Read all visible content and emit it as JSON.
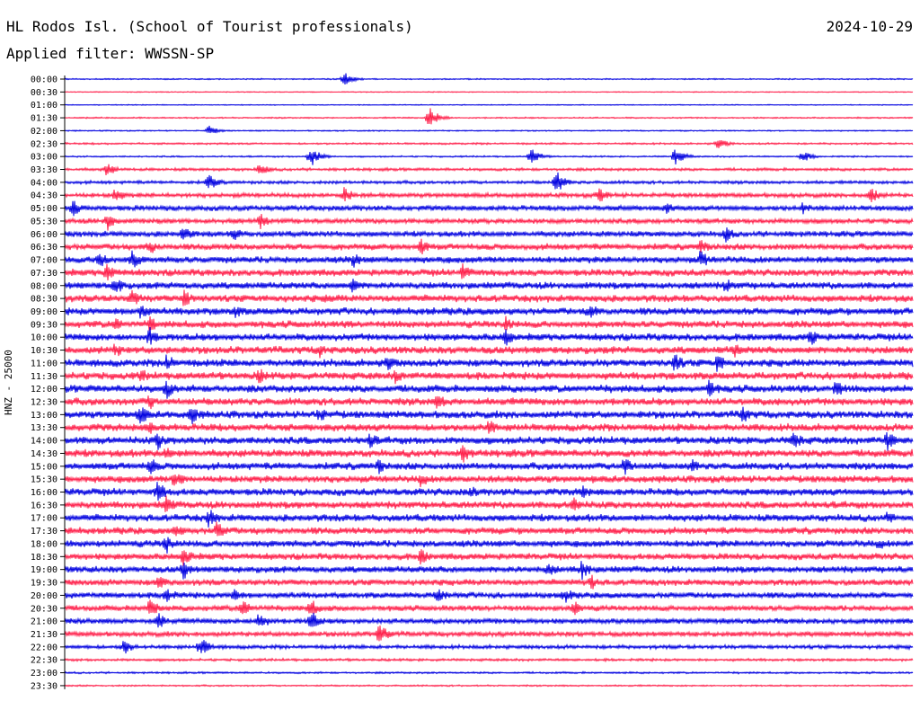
{
  "header": {
    "title": "HL Rodos Isl. (School of Tourist professionals)",
    "date": "2024-10-29",
    "filter": "Applied filter: WWSSN-SP"
  },
  "side_label": "HNZ - 25000",
  "colors": {
    "odd_trace": "#0000e0",
    "even_trace": "#ff1f4a",
    "axis": "#000000",
    "background": "#ffffff"
  },
  "chart_data": {
    "type": "line",
    "title": "HL Rodos Isl. (School of Tourist professionals)",
    "subtitle": "Applied filter: WWSSN-SP",
    "ylabel": "HNZ - 25000",
    "row_labels": [
      "00:00",
      "00:30",
      "01:00",
      "01:30",
      "02:00",
      "02:30",
      "03:00",
      "03:30",
      "04:00",
      "04:30",
      "05:00",
      "05:30",
      "06:00",
      "06:30",
      "07:00",
      "07:30",
      "08:00",
      "08:30",
      "09:00",
      "09:30",
      "10:00",
      "10:30",
      "11:00",
      "11:30",
      "12:00",
      "12:30",
      "13:00",
      "13:30",
      "14:00",
      "14:30",
      "15:00",
      "15:30",
      "16:00",
      "16:30",
      "17:00",
      "17:30",
      "18:00",
      "18:30",
      "19:00",
      "19:30",
      "20:00",
      "20:30",
      "21:00",
      "21:30",
      "22:00",
      "22:30",
      "23:00",
      "23:30"
    ],
    "trace_colors": [
      "#0000e0",
      "#ff1f4a"
    ],
    "noise_level": [
      0.8,
      0.6,
      0.6,
      0.9,
      0.8,
      1.2,
      1.0,
      1.8,
      2.0,
      2.8,
      3.4,
      3.2,
      3.6,
      4.0,
      4.2,
      4.4,
      4.4,
      4.6,
      4.6,
      4.6,
      4.6,
      4.8,
      4.8,
      4.8,
      4.8,
      4.8,
      4.8,
      4.8,
      4.8,
      4.8,
      4.6,
      4.6,
      4.6,
      4.6,
      4.6,
      4.4,
      4.4,
      4.2,
      4.2,
      4.0,
      3.8,
      3.6,
      3.4,
      3.2,
      2.4,
      1.6,
      1.2,
      1.0
    ],
    "events": [
      {
        "row": 0,
        "x": 0.33,
        "amp": 8
      },
      {
        "row": 3,
        "x": 0.43,
        "amp": 12
      },
      {
        "row": 4,
        "x": 0.17,
        "amp": 6
      },
      {
        "row": 5,
        "x": 0.77,
        "amp": 7
      },
      {
        "row": 6,
        "x": 0.29,
        "amp": 12
      },
      {
        "row": 6,
        "x": 0.55,
        "amp": 10
      },
      {
        "row": 6,
        "x": 0.72,
        "amp": 10
      },
      {
        "row": 6,
        "x": 0.87,
        "amp": 7
      },
      {
        "row": 7,
        "x": 0.05,
        "amp": 8
      },
      {
        "row": 7,
        "x": 0.23,
        "amp": 8
      },
      {
        "row": 8,
        "x": 0.17,
        "amp": 10
      },
      {
        "row": 8,
        "x": 0.58,
        "amp": 14
      },
      {
        "row": 9,
        "x": 0.06,
        "amp": 10
      },
      {
        "row": 9,
        "x": 0.33,
        "amp": 10
      },
      {
        "row": 9,
        "x": 0.63,
        "amp": 10
      },
      {
        "row": 9,
        "x": 0.95,
        "amp": 10
      },
      {
        "row": 10,
        "x": 0.01,
        "amp": 10
      },
      {
        "row": 10,
        "x": 0.71,
        "amp": 8
      },
      {
        "row": 10,
        "x": 0.87,
        "amp": 8
      },
      {
        "row": 11,
        "x": 0.05,
        "amp": 12
      },
      {
        "row": 11,
        "x": 0.23,
        "amp": 10
      },
      {
        "row": 12,
        "x": 0.14,
        "amp": 10
      },
      {
        "row": 12,
        "x": 0.2,
        "amp": 10
      },
      {
        "row": 12,
        "x": 0.78,
        "amp": 10
      },
      {
        "row": 13,
        "x": 0.1,
        "amp": 10
      },
      {
        "row": 13,
        "x": 0.42,
        "amp": 10
      },
      {
        "row": 13,
        "x": 0.75,
        "amp": 10
      },
      {
        "row": 14,
        "x": 0.04,
        "amp": 12
      },
      {
        "row": 14,
        "x": 0.08,
        "amp": 12
      },
      {
        "row": 14,
        "x": 0.34,
        "amp": 10
      },
      {
        "row": 14,
        "x": 0.75,
        "amp": 12
      },
      {
        "row": 15,
        "x": 0.05,
        "amp": 12
      },
      {
        "row": 15,
        "x": 0.47,
        "amp": 12
      },
      {
        "row": 16,
        "x": 0.06,
        "amp": 12
      },
      {
        "row": 16,
        "x": 0.34,
        "amp": 10
      },
      {
        "row": 16,
        "x": 0.78,
        "amp": 10
      },
      {
        "row": 17,
        "x": 0.08,
        "amp": 12
      },
      {
        "row": 17,
        "x": 0.14,
        "amp": 12
      },
      {
        "row": 17,
        "x": 0.31,
        "amp": 8
      },
      {
        "row": 18,
        "x": 0.09,
        "amp": 10
      },
      {
        "row": 18,
        "x": 0.2,
        "amp": 10
      },
      {
        "row": 18,
        "x": 0.62,
        "amp": 10
      },
      {
        "row": 19,
        "x": 0.06,
        "amp": 10
      },
      {
        "row": 19,
        "x": 0.1,
        "amp": 10
      },
      {
        "row": 19,
        "x": 0.52,
        "amp": 10
      },
      {
        "row": 20,
        "x": 0.1,
        "amp": 12
      },
      {
        "row": 20,
        "x": 0.52,
        "amp": 12
      },
      {
        "row": 20,
        "x": 0.88,
        "amp": 10
      },
      {
        "row": 21,
        "x": 0.06,
        "amp": 10
      },
      {
        "row": 21,
        "x": 0.3,
        "amp": 10
      },
      {
        "row": 21,
        "x": 0.79,
        "amp": 10
      },
      {
        "row": 22,
        "x": 0.12,
        "amp": 12
      },
      {
        "row": 22,
        "x": 0.38,
        "amp": 12
      },
      {
        "row": 22,
        "x": 0.72,
        "amp": 12
      },
      {
        "row": 22,
        "x": 0.77,
        "amp": 12
      },
      {
        "row": 23,
        "x": 0.09,
        "amp": 10
      },
      {
        "row": 23,
        "x": 0.23,
        "amp": 10
      },
      {
        "row": 23,
        "x": 0.39,
        "amp": 10
      },
      {
        "row": 24,
        "x": 0.12,
        "amp": 12
      },
      {
        "row": 24,
        "x": 0.76,
        "amp": 12
      },
      {
        "row": 24,
        "x": 0.91,
        "amp": 12
      },
      {
        "row": 25,
        "x": 0.1,
        "amp": 10
      },
      {
        "row": 25,
        "x": 0.44,
        "amp": 10
      },
      {
        "row": 26,
        "x": 0.09,
        "amp": 12
      },
      {
        "row": 26,
        "x": 0.15,
        "amp": 12
      },
      {
        "row": 26,
        "x": 0.3,
        "amp": 10
      },
      {
        "row": 26,
        "x": 0.8,
        "amp": 10
      },
      {
        "row": 27,
        "x": 0.1,
        "amp": 10
      },
      {
        "row": 27,
        "x": 0.5,
        "amp": 10
      },
      {
        "row": 28,
        "x": 0.11,
        "amp": 12
      },
      {
        "row": 28,
        "x": 0.36,
        "amp": 10
      },
      {
        "row": 28,
        "x": 0.86,
        "amp": 12
      },
      {
        "row": 28,
        "x": 0.97,
        "amp": 12
      },
      {
        "row": 29,
        "x": 0.12,
        "amp": 10
      },
      {
        "row": 29,
        "x": 0.47,
        "amp": 12
      },
      {
        "row": 30,
        "x": 0.1,
        "amp": 12
      },
      {
        "row": 30,
        "x": 0.37,
        "amp": 10
      },
      {
        "row": 30,
        "x": 0.66,
        "amp": 12
      },
      {
        "row": 30,
        "x": 0.74,
        "amp": 10
      },
      {
        "row": 31,
        "x": 0.13,
        "amp": 12
      },
      {
        "row": 31,
        "x": 0.42,
        "amp": 10
      },
      {
        "row": 32,
        "x": 0.11,
        "amp": 14
      },
      {
        "row": 32,
        "x": 0.48,
        "amp": 8
      },
      {
        "row": 32,
        "x": 0.61,
        "amp": 10
      },
      {
        "row": 33,
        "x": 0.12,
        "amp": 12
      },
      {
        "row": 33,
        "x": 0.6,
        "amp": 10
      },
      {
        "row": 34,
        "x": 0.17,
        "amp": 12
      },
      {
        "row": 34,
        "x": 0.97,
        "amp": 8
      },
      {
        "row": 35,
        "x": 0.13,
        "amp": 10
      },
      {
        "row": 35,
        "x": 0.18,
        "amp": 12
      },
      {
        "row": 36,
        "x": 0.12,
        "amp": 12
      },
      {
        "row": 36,
        "x": 0.96,
        "amp": 8
      },
      {
        "row": 37,
        "x": 0.14,
        "amp": 12
      },
      {
        "row": 37,
        "x": 0.42,
        "amp": 10
      },
      {
        "row": 38,
        "x": 0.14,
        "amp": 12
      },
      {
        "row": 38,
        "x": 0.57,
        "amp": 10
      },
      {
        "row": 38,
        "x": 0.61,
        "amp": 12
      },
      {
        "row": 39,
        "x": 0.11,
        "amp": 10
      },
      {
        "row": 39,
        "x": 0.62,
        "amp": 10
      },
      {
        "row": 40,
        "x": 0.12,
        "amp": 12
      },
      {
        "row": 40,
        "x": 0.2,
        "amp": 10
      },
      {
        "row": 40,
        "x": 0.44,
        "amp": 10
      },
      {
        "row": 40,
        "x": 0.59,
        "amp": 10
      },
      {
        "row": 41,
        "x": 0.1,
        "amp": 12
      },
      {
        "row": 41,
        "x": 0.21,
        "amp": 12
      },
      {
        "row": 41,
        "x": 0.29,
        "amp": 12
      },
      {
        "row": 41,
        "x": 0.6,
        "amp": 10
      },
      {
        "row": 42,
        "x": 0.11,
        "amp": 10
      },
      {
        "row": 42,
        "x": 0.23,
        "amp": 12
      },
      {
        "row": 42,
        "x": 0.29,
        "amp": 14
      },
      {
        "row": 43,
        "x": 0.37,
        "amp": 14
      },
      {
        "row": 44,
        "x": 0.07,
        "amp": 10
      },
      {
        "row": 44,
        "x": 0.16,
        "amp": 12
      }
    ]
  }
}
